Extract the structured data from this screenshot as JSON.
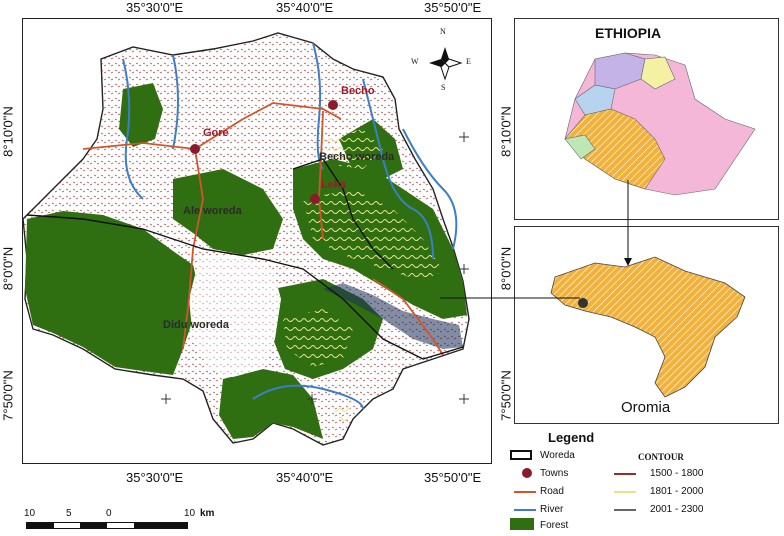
{
  "main_map": {
    "top_coords": [
      "35°30'0\"E",
      "35°40'0\"E",
      "35°50'0\"E"
    ],
    "bottom_coords": [
      "35°30'0\"E",
      "35°40'0\"E",
      "35°50'0\"E"
    ],
    "left_coords": [
      "8°10'0\"N",
      "8°0'0\"N",
      "7°50'0\"N"
    ],
    "town_labels": [
      "Gore",
      "Becho",
      "Leka"
    ],
    "woreda_labels": [
      "Ale woreda",
      "Becho woreda",
      "Didu woreda"
    ],
    "compass": {
      "n": "N",
      "s": "S",
      "e": "E",
      "w": "W"
    }
  },
  "inset_ethiopia": {
    "title": "ETHIOPIA",
    "right_coord": "8°10'0\"N"
  },
  "inset_oromia": {
    "name": "Oromia",
    "right_coords": [
      "8°0'0\"N",
      "7°50'0\"N"
    ]
  },
  "legend": {
    "title": "Legend",
    "items": [
      {
        "label": "Woreda",
        "icon": "woreda-box"
      },
      {
        "label": "Towns",
        "icon": "town-dot"
      },
      {
        "label": "Road",
        "icon": "road-line"
      },
      {
        "label": "River",
        "icon": "river-line"
      },
      {
        "label": "Forest",
        "icon": "forest-swatch"
      }
    ],
    "contour_title": "CONTOUR",
    "contours": [
      "1500 - 1800",
      "1801 - 2000",
      "2001 - 2300"
    ]
  },
  "scale_bar": {
    "ticks": [
      "10",
      "5",
      "0",
      "10"
    ],
    "unit": "km"
  },
  "colors": {
    "forest": "#2f6f12",
    "road": "#d2552a",
    "river": "#3d7ec8",
    "contour_low": "#9b2a2a",
    "contour_mid": "#e6e38a",
    "oromia": "#f2b13a"
  }
}
